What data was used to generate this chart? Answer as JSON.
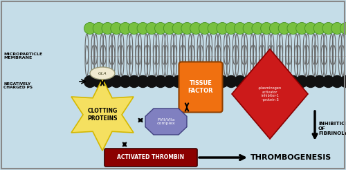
{
  "bg_color": "#c5dde8",
  "title_text": "THROMBOGENESIS",
  "activated_thrombin_text": "ACTIVATED THROMBIN",
  "activated_thrombin_color": "#8b0000",
  "clotting_proteins_text": "CLOTTING\nPROTEINS",
  "clotting_star_color": "#f5e060",
  "clotting_star_edge": "#d4b800",
  "gla_text": "GLA",
  "gla_color": "#f0ead0",
  "tissue_factor_text": "TISSUE\nFACTOR",
  "tissue_factor_color": "#f07010",
  "fvii_text": "FVII/VIIa\ncomplex",
  "fvii_color": "#8080c0",
  "plasminogen_text": "-plasminogen\nactivator\ninhibitor-1\n-protein S",
  "plasminogen_color": "#cc1a1a",
  "inhibition_text": "INHIBITION\nOF\nFIBRINOLYSIS",
  "negatively_charged_text": "NEGATIVELY\nCHARGED PS",
  "microparticle_text": "MICROPARTICLE\nMEMBRANE",
  "black_head_color": "#111111",
  "green_head_color": "#78c040",
  "tail_color": "#666666",
  "border_color": "#888888"
}
